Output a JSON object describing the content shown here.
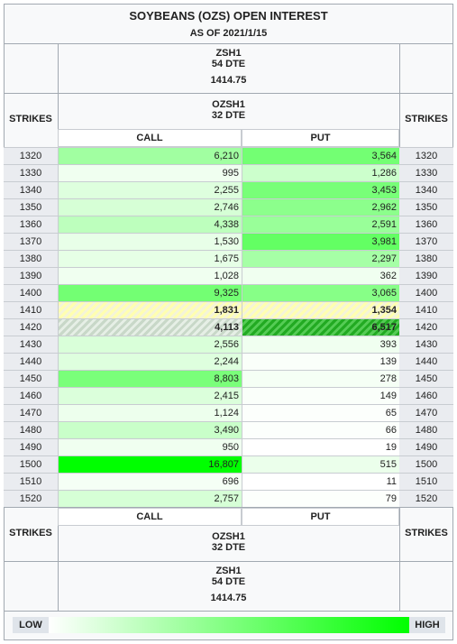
{
  "title": "SOYBEANS (OZS) OPEN INTEREST",
  "subtitle": "AS OF 2021/1/15",
  "underlying": {
    "contract": "ZSH1",
    "dte": "54 DTE",
    "price": "1414.75"
  },
  "option": {
    "contract": "OZSH1",
    "dte": "32 DTE"
  },
  "labels": {
    "strikes": "STRIKES",
    "call": "CALL",
    "put": "PUT",
    "low": "LOW",
    "high": "HIGH"
  },
  "colors": {
    "high": "#00ff00",
    "low": "#ffffff",
    "atm_highlight": "#ffffcc"
  },
  "rows": [
    {
      "strike": "1320",
      "call": "6,210",
      "put": "3,564",
      "call_level": 0.37,
      "put_level": 0.55
    },
    {
      "strike": "1330",
      "call": "995",
      "put": "1,286",
      "call_level": 0.06,
      "put_level": 0.2
    },
    {
      "strike": "1340",
      "call": "2,255",
      "put": "3,453",
      "call_level": 0.13,
      "put_level": 0.53
    },
    {
      "strike": "1350",
      "call": "2,746",
      "put": "2,962",
      "call_level": 0.16,
      "put_level": 0.45
    },
    {
      "strike": "1360",
      "call": "4,338",
      "put": "2,591",
      "call_level": 0.26,
      "put_level": 0.4
    },
    {
      "strike": "1370",
      "call": "1,530",
      "put": "3,981",
      "call_level": 0.09,
      "put_level": 0.61
    },
    {
      "strike": "1380",
      "call": "1,675",
      "put": "2,297",
      "call_level": 0.1,
      "put_level": 0.35
    },
    {
      "strike": "1390",
      "call": "1,028",
      "put": "362",
      "call_level": 0.06,
      "put_level": 0.06
    },
    {
      "strike": "1400",
      "call": "9,325",
      "put": "3,065",
      "call_level": 0.55,
      "put_level": 0.47
    },
    {
      "strike": "1410",
      "call": "1,831",
      "put": "1,354",
      "call_level": 0.0,
      "put_level": 0.0,
      "highlight": true
    },
    {
      "strike": "1420",
      "call": "4,113",
      "put": "6,517",
      "call_level": 0.24,
      "put_level": 1.0,
      "hatched": true
    },
    {
      "strike": "1430",
      "call": "2,556",
      "put": "393",
      "call_level": 0.15,
      "put_level": 0.06
    },
    {
      "strike": "1440",
      "call": "2,244",
      "put": "139",
      "call_level": 0.13,
      "put_level": 0.02
    },
    {
      "strike": "1450",
      "call": "8,803",
      "put": "278",
      "call_level": 0.52,
      "put_level": 0.04
    },
    {
      "strike": "1460",
      "call": "2,415",
      "put": "149",
      "call_level": 0.14,
      "put_level": 0.02
    },
    {
      "strike": "1470",
      "call": "1,124",
      "put": "65",
      "call_level": 0.07,
      "put_level": 0.01
    },
    {
      "strike": "1480",
      "call": "3,490",
      "put": "66",
      "call_level": 0.21,
      "put_level": 0.01
    },
    {
      "strike": "1490",
      "call": "950",
      "put": "19",
      "call_level": 0.06,
      "put_level": 0.0
    },
    {
      "strike": "1500",
      "call": "16,807",
      "put": "515",
      "call_level": 1.0,
      "put_level": 0.08
    },
    {
      "strike": "1510",
      "call": "696",
      "put": "11",
      "call_level": 0.04,
      "put_level": 0.0
    },
    {
      "strike": "1520",
      "call": "2,757",
      "put": "79",
      "call_level": 0.16,
      "put_level": 0.01
    }
  ]
}
